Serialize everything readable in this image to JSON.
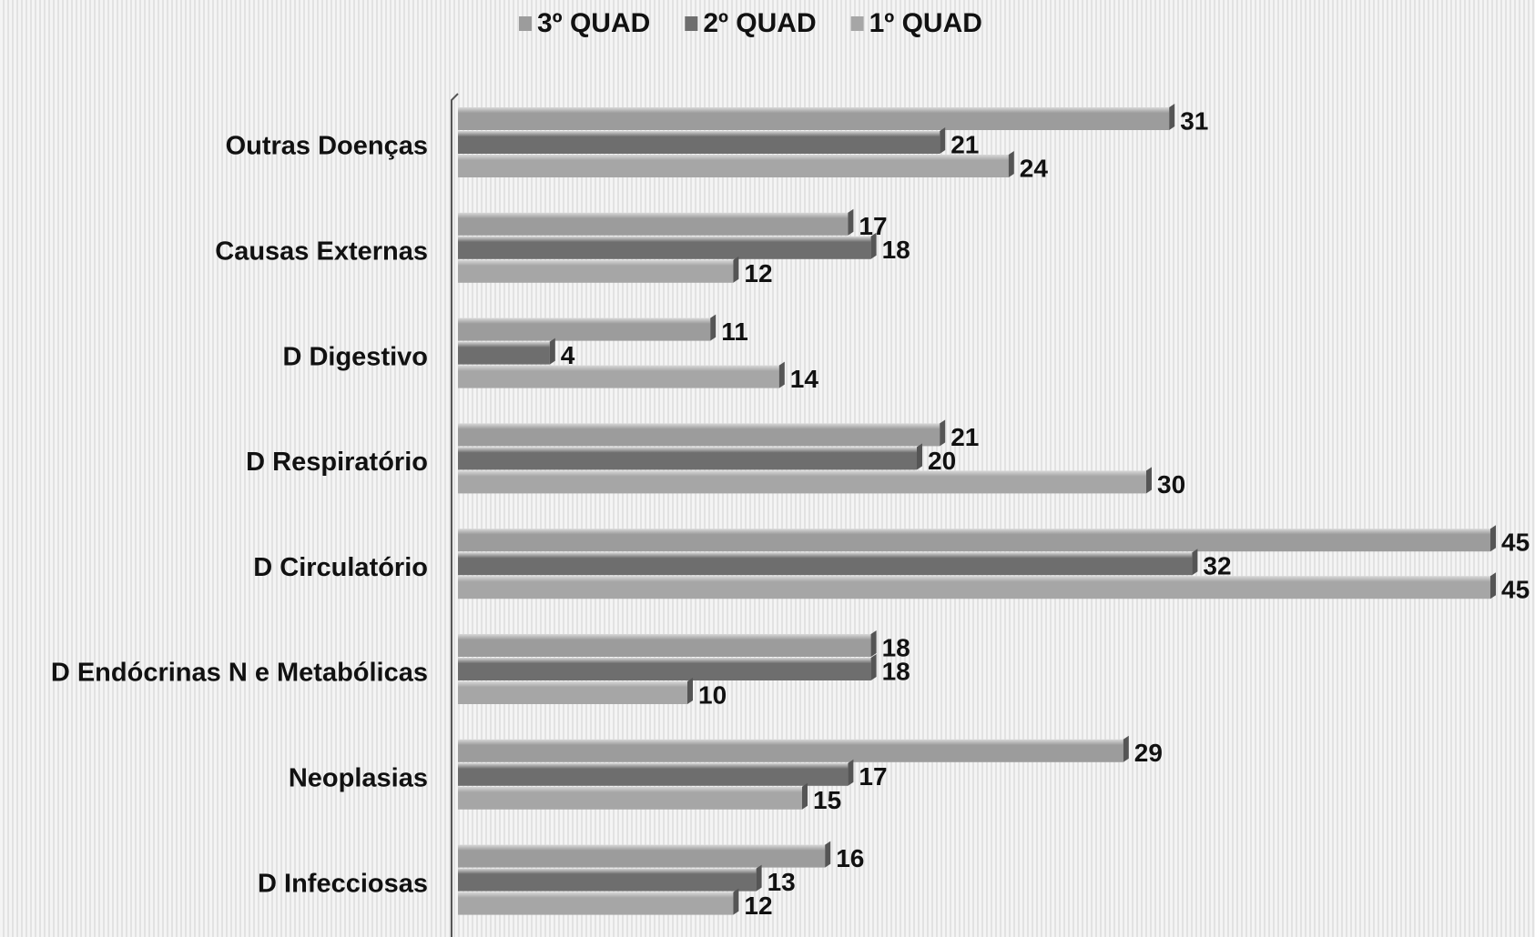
{
  "chart_data": {
    "type": "bar",
    "orientation": "horizontal",
    "categories": [
      "Outras Doenças",
      "Causas Externas",
      "D Digestivo",
      "D Respiratório",
      "D Circulatório",
      "D Endócrinas N e Metabólicas",
      "Neoplasias",
      "D Infecciosas"
    ],
    "series": [
      {
        "name": "3º QUAD",
        "color": "#9c9c9c",
        "values": [
          31,
          17,
          11,
          21,
          45,
          18,
          29,
          16
        ]
      },
      {
        "name": "2º QUAD",
        "color": "#6e6e6e",
        "values": [
          21,
          18,
          4,
          20,
          32,
          18,
          17,
          13
        ]
      },
      {
        "name": "1º QUAD",
        "color": "#a6a6a6",
        "values": [
          24,
          12,
          14,
          30,
          45,
          10,
          15,
          12
        ]
      }
    ],
    "legend": "top"
  }
}
